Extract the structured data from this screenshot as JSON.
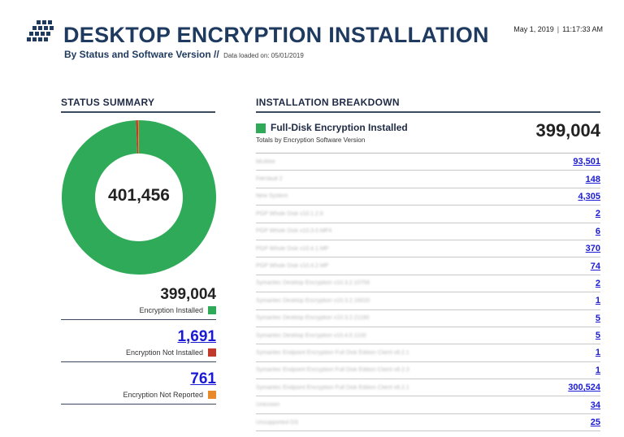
{
  "header": {
    "title": "DESKTOP ENCRYPTION INSTALLATION",
    "subtitle": "By Status and Software Version //",
    "data_loaded": "Data loaded on: 05/01/2019",
    "date": "May 1, 2019",
    "time": "11:17:33 AM",
    "logo_icon": "grid-logo-icon"
  },
  "status_summary": {
    "heading": "STATUS SUMMARY",
    "donut_total": "401,456",
    "items": [
      {
        "value": "399,004",
        "label": "Encryption Installed",
        "color": "#2faa58"
      },
      {
        "value": "1,691",
        "label": "Encryption Not Installed",
        "color": "#c0392b"
      },
      {
        "value": "761",
        "label": "Encryption Not Reported",
        "color": "#e8892a"
      }
    ]
  },
  "breakdown": {
    "heading": "INSTALLATION BREAKDOWN",
    "title": "Full-Disk Encryption Installed",
    "subtitle": "Totals by Encryption Software Version",
    "total": "399,004",
    "rows": [
      {
        "name": "McAfee",
        "value": "93,501"
      },
      {
        "name": "FileVault 2",
        "value": "148"
      },
      {
        "name": "New System",
        "value": "4,305"
      },
      {
        "name": "PGP Whole Disk v10.1.2.6",
        "value": "2"
      },
      {
        "name": "PGP Whole Disk v10.3.0.MP4",
        "value": "6"
      },
      {
        "name": "PGP Whole Disk v10.4.1.MP",
        "value": "370"
      },
      {
        "name": "PGP Whole Disk v10.4.2.MP",
        "value": "74"
      },
      {
        "name": "Symantec Desktop Encryption v10.3.2.10756",
        "value": "2"
      },
      {
        "name": "Symantec Desktop Encryption v10.3.2.16020",
        "value": "1"
      },
      {
        "name": "Symantec Desktop Encryption v10.3.2.21180",
        "value": "5"
      },
      {
        "name": "Symantec Desktop Encryption v10.4.0.1100",
        "value": "5"
      },
      {
        "name": "Symantec Endpoint Encryption Full Disk Edition Client v8.2.1",
        "value": "1"
      },
      {
        "name": "Symantec Endpoint Encryption Full Disk Edition Client v8.2.3",
        "value": "1"
      },
      {
        "name": "Symantec Endpoint Encryption Full Disk Edition Client v8.2.1",
        "value": "300,524"
      },
      {
        "name": "Unknown",
        "value": "34"
      },
      {
        "name": "Unsupported OS",
        "value": "25"
      }
    ]
  },
  "chart_data": {
    "type": "pie",
    "labels": [
      "Encryption Installed",
      "Encryption Not Installed",
      "Encryption Not Reported"
    ],
    "values": [
      399004,
      1691,
      761
    ],
    "colors": [
      "#2faa58",
      "#c0392b",
      "#e8892a"
    ]
  }
}
